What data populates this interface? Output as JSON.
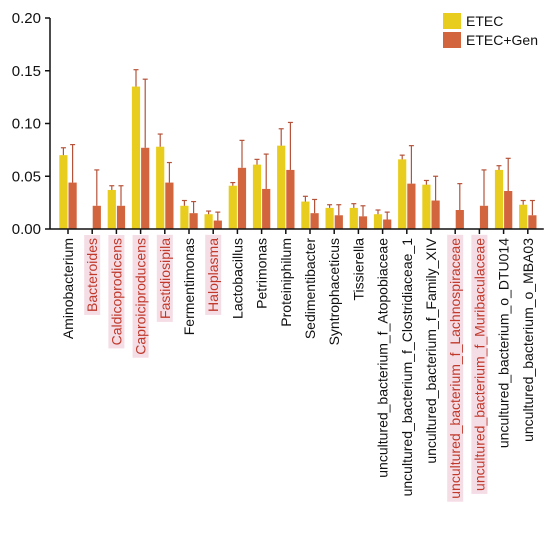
{
  "chart_data": {
    "type": "bar",
    "categories": [
      "Aminobacterium",
      "Bacteroides",
      "Caldicoprodicens",
      "Caproiciproducens",
      "Fastidiosipila",
      "Fermentimonas",
      "Haloplasma",
      "Lactobacillus",
      "Petrimonas",
      "Proteiniphilum",
      "Sedimentibacter",
      "Syntrophaceticus",
      "Tissierella",
      "uncultured_bacterium_f_Atopobiaceae",
      "uncultured_bacterium_f_Clostridiaceae_1",
      "uncultured_bacterium_f_Family_XIV",
      "uncultured_bacterium_f_Lachnospiraceae",
      "uncultured_bacterium_f_Muribaculaceae",
      "uncultured_bacterium_o_DTU014",
      "uncultured_bacterium_o_MBA03"
    ],
    "highlighted": [
      false,
      true,
      true,
      true,
      true,
      false,
      true,
      false,
      false,
      false,
      false,
      false,
      false,
      false,
      false,
      false,
      true,
      true,
      false,
      false
    ],
    "series": [
      {
        "name": "ETEC",
        "color": "#e8cc1e",
        "values": [
          0.07,
          0.0,
          0.037,
          0.135,
          0.078,
          0.022,
          0.014,
          0.041,
          0.061,
          0.079,
          0.026,
          0.02,
          0.02,
          0.014,
          0.066,
          0.042,
          0.0,
          0.0,
          0.056,
          0.023
        ],
        "error": [
          0.007,
          0.0,
          0.004,
          0.016,
          0.012,
          0.005,
          0.003,
          0.003,
          0.005,
          0.016,
          0.005,
          0.003,
          0.004,
          0.004,
          0.004,
          0.004,
          0.0,
          0.0,
          0.004,
          0.004
        ]
      },
      {
        "name": "ETEC+Gen",
        "color": "#d2643e",
        "values": [
          0.044,
          0.022,
          0.022,
          0.077,
          0.044,
          0.015,
          0.008,
          0.058,
          0.038,
          0.056,
          0.015,
          0.013,
          0.012,
          0.009,
          0.043,
          0.027,
          0.018,
          0.022,
          0.036,
          0.013
        ],
        "error": [
          0.036,
          0.034,
          0.019,
          0.065,
          0.019,
          0.011,
          0.008,
          0.026,
          0.033,
          0.045,
          0.013,
          0.01,
          0.01,
          0.007,
          0.036,
          0.023,
          0.025,
          0.034,
          0.031,
          0.014
        ]
      }
    ],
    "ylim": [
      0,
      0.2
    ],
    "yticks": [
      "0.00",
      "0.05",
      "0.10",
      "0.15",
      "0.20"
    ],
    "ytick_values": [
      0,
      0.05,
      0.1,
      0.15,
      0.2
    ],
    "title": "",
    "xlabel": "",
    "ylabel": "",
    "legend_position": "top-right",
    "label_colors": {
      "normal": "#111111",
      "highlight": "#c0392b"
    },
    "highlight_band_color": "#f5dde6",
    "error_bar_color": "#b5533a",
    "grid": false
  }
}
